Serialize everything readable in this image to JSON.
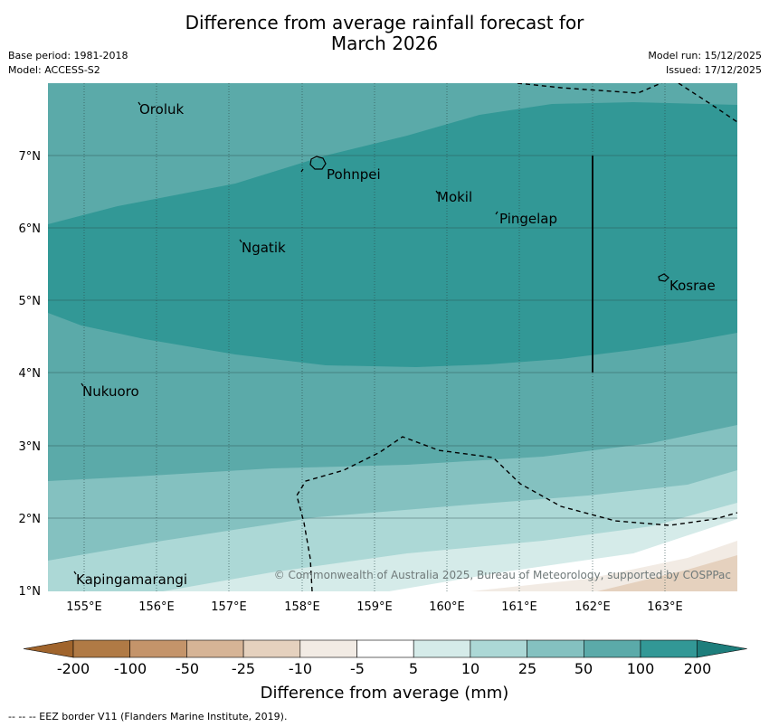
{
  "title_line1": "Difference from average rainfall forecast for",
  "title_line2": "March 2026",
  "meta_left": {
    "base_period": "Base period: 1981-2018",
    "model": "Model: ACCESS-S2"
  },
  "meta_right": {
    "model_run": "Model run: 15/12/2025",
    "issued": "Issued: 17/12/2025"
  },
  "lat_labels": [
    "7°N",
    "6°N",
    "5°N",
    "4°N",
    "3°N",
    "2°N",
    "1°N"
  ],
  "lon_labels": [
    "155°E",
    "156°E",
    "157°E",
    "158°E",
    "159°E",
    "160°E",
    "161°E",
    "162°E",
    "163°E"
  ],
  "places": [
    "Oroluk",
    "Pohnpei",
    "Mokil",
    "Pingelap",
    "Ngatik",
    "Kosrae",
    "Nukuoro",
    "Kapingamarangi"
  ],
  "copyright": "© Commonwealth of Australia 2025, Bureau of Meteorology, supported by COSPPac",
  "colorbar": {
    "labels": [
      "-200",
      "-100",
      "-50",
      "-25",
      "-10",
      "-5",
      "5",
      "10",
      "25",
      "50",
      "100",
      "200"
    ],
    "colors": [
      "#a0642c",
      "#b07a45",
      "#c4946a",
      "#d6b496",
      "#e5d1be",
      "#f2ebe4",
      "#ffffff",
      "#d5ebe9",
      "#acd8d6",
      "#84c1c0",
      "#5baaa9",
      "#329896",
      "#1e7e7c"
    ],
    "title": "Difference from average (mm)"
  },
  "colors": {
    "z200": "#329896",
    "z100": "#5baaa9",
    "z50": "#84c1c0",
    "z25": "#acd8d6",
    "z10": "#d5ebe9",
    "zneg10": "#f2ebe4",
    "zneg25": "#e5d1be"
  },
  "footer": "--  --  -- EEZ border V11 (Flanders Marine Institute, 2019)."
}
